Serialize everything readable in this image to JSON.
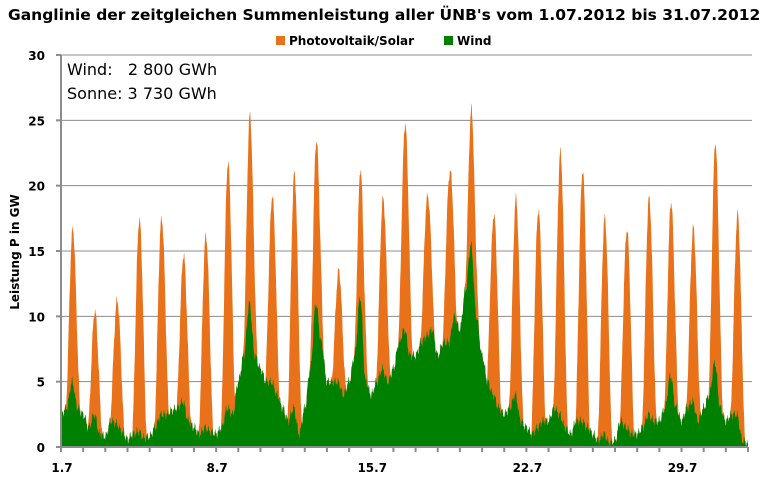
{
  "chart_data": {
    "type": "area",
    "stacked": true,
    "title": "Ganglinie der zeitgleichen Summenleistung aller ÜNB's vom 1.07.2012 bis 31.07.2012",
    "xlabel": "",
    "ylabel": "Leistung P in GW",
    "ylim": [
      0,
      30
    ],
    "yticks": [
      "0",
      "5",
      "10",
      "15",
      "20",
      "25",
      "30"
    ],
    "xlim_days": [
      1,
      32
    ],
    "xtick_labels": [
      {
        "day": 1,
        "label": "1.7"
      },
      {
        "day": 8,
        "label": "8.7"
      },
      {
        "day": 15,
        "label": "15.7"
      },
      {
        "day": 22,
        "label": "22.7"
      },
      {
        "day": 29,
        "label": "29.7"
      }
    ],
    "grid": "horizontal",
    "legend_placement": "top-center",
    "annotations": {
      "wind": "Wind:   2 800 GWh",
      "sonne": "Sonne: 3 730 GWh"
    },
    "series": [
      {
        "name": "Wind",
        "color": "#008000",
        "sample_hours": [
          0,
          6,
          12,
          18
        ],
        "values_gw_by_day": [
          [
            2.5,
            3,
            5,
            3
          ],
          [
            2.5,
            1.5,
            2.5,
            1
          ],
          [
            0.8,
            2,
            1.8,
            1.2
          ],
          [
            0.6,
            1,
            1.2,
            0.7
          ],
          [
            0.8,
            1.5,
            2.5,
            2.5
          ],
          [
            2.8,
            3,
            3.5,
            2
          ],
          [
            1.5,
            1,
            1.5,
            1.2
          ],
          [
            1,
            1.5,
            3,
            2.5
          ],
          [
            5,
            7,
            11,
            7
          ],
          [
            6,
            5,
            5,
            4
          ],
          [
            3,
            2,
            3,
            1
          ],
          [
            3,
            6,
            11,
            8
          ],
          [
            5,
            5,
            5,
            4
          ],
          [
            5,
            7,
            11.5,
            5
          ],
          [
            4,
            5,
            6,
            5
          ],
          [
            6,
            8,
            9,
            7
          ],
          [
            7,
            8,
            8.5,
            9
          ],
          [
            7,
            8,
            8,
            10
          ],
          [
            9,
            12,
            15.5,
            10
          ],
          [
            7,
            5,
            4,
            3
          ],
          [
            2.5,
            3,
            4,
            2
          ],
          [
            1.5,
            1,
            1.5,
            2
          ],
          [
            2,
            3,
            2.5,
            1.5
          ],
          [
            1,
            2,
            2,
            1.5
          ],
          [
            1,
            0.5,
            1,
            0.3
          ],
          [
            0.5,
            2,
            1.5,
            1
          ],
          [
            1,
            1.5,
            2.5,
            2
          ],
          [
            2,
            3,
            5.5,
            3
          ],
          [
            2,
            3,
            3.5,
            2
          ],
          [
            3,
            4,
            6.5,
            3
          ],
          [
            2,
            2.5,
            2.5,
            0.5
          ]
        ]
      },
      {
        "name": "Photovoltaik/Solar",
        "color": "#E8711A",
        "daily_peak_gw": [
          11.8,
          8,
          9.5,
          16.3,
          15,
          11.3,
          14.7,
          18.8,
          14.6,
          14.3,
          18.1,
          12.6,
          8.6,
          10,
          13.1,
          15.9,
          10.7,
          12.9,
          10.6,
          13.9,
          15.2,
          16.6,
          20.2,
          19.2,
          16.6,
          15.2,
          16.6,
          13.4,
          13.4,
          17,
          15.5
        ]
      }
    ]
  }
}
